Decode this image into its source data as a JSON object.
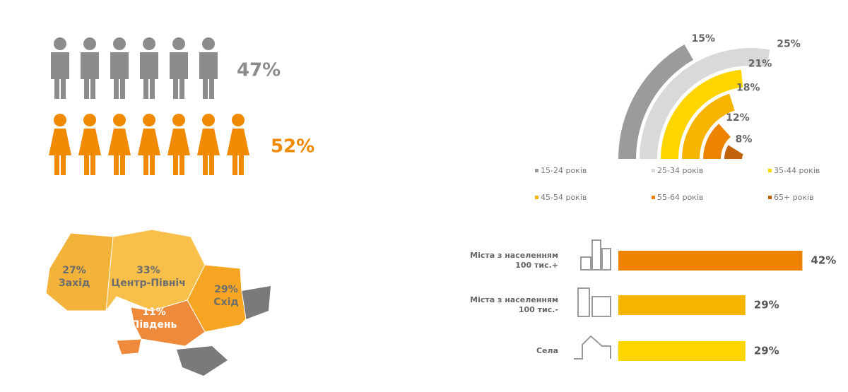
{
  "chart_data": [
    {
      "type": "pictogram",
      "values": [
        47,
        52
      ],
      "value_labels": [
        "47%",
        "52%"
      ],
      "colors": [
        "#8c8c8c",
        "#f08a00"
      ]
    },
    {
      "type": "radial-bar",
      "categories": [
        "15-24 років",
        "25-34 років",
        "35-44 років",
        "45-54 років",
        "55-64 років",
        "65+ років"
      ],
      "values": [
        15,
        25,
        21,
        18,
        12,
        8
      ],
      "value_labels": [
        "15%",
        "25%",
        "21%",
        "18%",
        "12%",
        "8%"
      ],
      "colors": [
        "#9b9b9b",
        "#d9d9d9",
        "#ffd500",
        "#f5b400",
        "#ee8300",
        "#c0620a"
      ]
    },
    {
      "type": "map",
      "categories": [
        "Захід",
        "Центр-Північ",
        "Схід",
        "Південь"
      ],
      "values": [
        27,
        33,
        29,
        11
      ],
      "value_labels": [
        "27%",
        "33%",
        "29%",
        "11%"
      ],
      "colors": [
        "#f3b23a",
        "#f8c04a",
        "#f6a623",
        "#ee8a3c"
      ]
    },
    {
      "type": "bar",
      "categories": [
        "Міста з населенням\n100 тис.+",
        "Міста з населенням\n100 тис.-",
        "Села"
      ],
      "values": [
        42,
        29,
        29
      ],
      "value_labels": [
        "42%",
        "29%",
        "29%"
      ],
      "colors": [
        "#ee8300",
        "#f5b400",
        "#ffd500"
      ]
    }
  ]
}
